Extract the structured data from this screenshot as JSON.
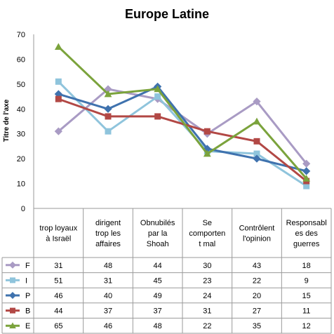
{
  "chart_data": {
    "type": "line",
    "title": "Europe Latine",
    "ylabel": "Titre de l'axe",
    "ylim": [
      0,
      70
    ],
    "yticks": [
      0,
      10,
      20,
      30,
      40,
      50,
      60,
      70
    ],
    "grid": false,
    "legend": "data table below chart",
    "categories": [
      [
        "trop loyaux",
        "à Israël"
      ],
      [
        "dirigent",
        "trop les",
        "affaires"
      ],
      [
        "Obnubilés",
        "par la",
        "Shoah"
      ],
      [
        "Se",
        "comporten",
        "t mal"
      ],
      [
        "Contrôlent",
        "l'opinion"
      ],
      [
        "Responsabl",
        "es des",
        "guerres"
      ]
    ],
    "series": [
      {
        "name": "F",
        "values": [
          31,
          48,
          44,
          30,
          43,
          18
        ],
        "color": "#a99bc4",
        "marker": "diamond"
      },
      {
        "name": "I",
        "values": [
          51,
          31,
          45,
          23,
          22,
          9
        ],
        "color": "#8fc4dc",
        "marker": "square"
      },
      {
        "name": "P",
        "values": [
          46,
          40,
          49,
          24,
          20,
          15
        ],
        "color": "#3f72ae",
        "marker": "diamond"
      },
      {
        "name": "B",
        "values": [
          44,
          37,
          37,
          31,
          27,
          11
        ],
        "color": "#b24845",
        "marker": "square"
      },
      {
        "name": "E",
        "values": [
          65,
          46,
          48,
          22,
          35,
          12
        ],
        "color": "#7ba33c",
        "marker": "triangle"
      }
    ]
  }
}
